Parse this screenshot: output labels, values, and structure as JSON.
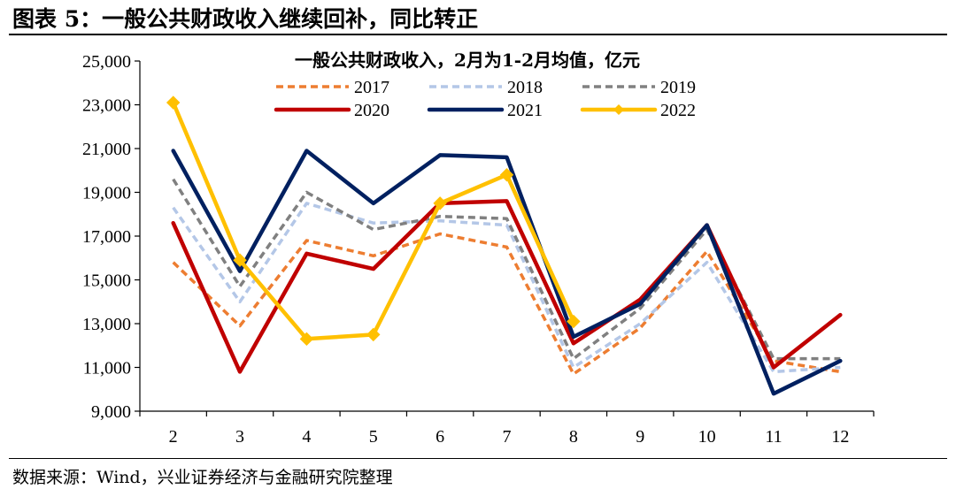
{
  "figure": {
    "title": "图表 5：一般公共财政收入继续回补，同比转正",
    "source": "数据来源：Wind，兴业证券经济与金融研究院整理"
  },
  "chart_data": {
    "type": "line",
    "title": "一般公共财政收入，2月为1-2月均值，亿元",
    "xlabel": "",
    "ylabel": "",
    "x": [
      2,
      3,
      4,
      5,
      6,
      7,
      8,
      9,
      10,
      11,
      12
    ],
    "ylim": [
      9000,
      25000
    ],
    "yticks": [
      9000,
      11000,
      13000,
      15000,
      17000,
      19000,
      21000,
      23000,
      25000
    ],
    "ytick_labels": [
      "9,000",
      "11,000",
      "13,000",
      "15,000",
      "17,000",
      "19,000",
      "21,000",
      "23,000",
      "25,000"
    ],
    "xtick_labels": [
      "2",
      "3",
      "4",
      "5",
      "6",
      "7",
      "8",
      "9",
      "10",
      "11",
      "12"
    ],
    "grid": false,
    "legend_position": "top-center",
    "series": [
      {
        "name": "2017",
        "color": "#ED7D31",
        "style": "dashed",
        "marker": "none",
        "values": [
          15800,
          12900,
          16800,
          16100,
          17100,
          16500,
          10700,
          12800,
          16300,
          11300,
          10800
        ]
      },
      {
        "name": "2018",
        "color": "#B4C7E7",
        "style": "dashed",
        "marker": "none",
        "values": [
          18300,
          14000,
          18500,
          17600,
          17700,
          17500,
          11000,
          13000,
          15800,
          10800,
          11000
        ]
      },
      {
        "name": "2019",
        "color": "#808080",
        "style": "dashed",
        "marker": "none",
        "values": [
          19600,
          14700,
          19000,
          17300,
          17900,
          17800,
          11400,
          13700,
          17300,
          11400,
          11400
        ]
      },
      {
        "name": "2020",
        "color": "#C00000",
        "style": "solid",
        "marker": "none",
        "values": [
          17600,
          10800,
          16200,
          15500,
          18500,
          18600,
          12100,
          14100,
          17500,
          11000,
          13400
        ]
      },
      {
        "name": "2021",
        "color": "#002060",
        "style": "solid",
        "marker": "none",
        "values": [
          20900,
          15400,
          20900,
          18500,
          20700,
          20600,
          12400,
          13900,
          17500,
          9800,
          11300
        ]
      },
      {
        "name": "2022",
        "color": "#FFC000",
        "style": "solid",
        "marker": "diamond",
        "values": [
          23100,
          15900,
          12300,
          12500,
          18500,
          19800,
          13100,
          null,
          null,
          null,
          null
        ]
      }
    ]
  }
}
